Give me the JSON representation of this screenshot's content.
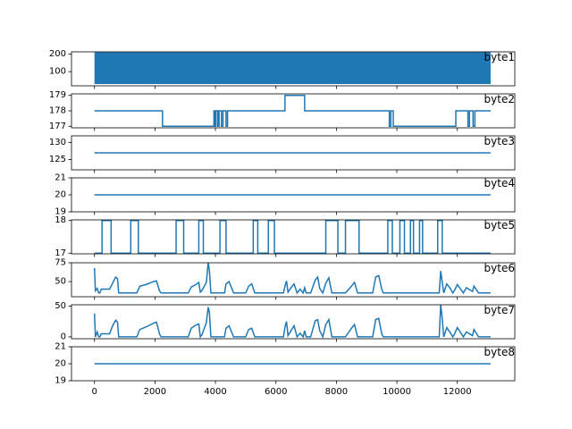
{
  "chart_data": {
    "type": "line",
    "line_color": "#1f77b4",
    "shared_x": {
      "xlim": [
        -760,
        13900
      ],
      "ticks": [
        0,
        2000,
        4000,
        6000,
        8000,
        10000,
        12000
      ],
      "tick_labels": [
        "0",
        "2000",
        "4000",
        "6000",
        "8000",
        "10000",
        "12000"
      ]
    },
    "panels": [
      {
        "title": "byte1",
        "ylim": [
          20,
          212
        ],
        "yticks": [
          100,
          200
        ],
        "ytick_labels": [
          "100",
          "200"
        ],
        "style": "dense-fill",
        "x": [
          0,
          13100
        ],
        "y_low": 30,
        "y_high": 210
      },
      {
        "title": "byte2",
        "ylim": [
          176.9,
          179.1
        ],
        "yticks": [
          177,
          178,
          179
        ],
        "ytick_labels": [
          "177",
          "178",
          "179"
        ],
        "style": "step",
        "x": [
          0,
          2250,
          2250,
          3950,
          3950,
          3980,
          3980,
          4020,
          4020,
          4080,
          4080,
          4120,
          4120,
          4200,
          4200,
          4250,
          4250,
          4350,
          4350,
          4400,
          4400,
          6300,
          6300,
          6950,
          6950,
          7050,
          7050,
          9750,
          9750,
          9800,
          9800,
          9880,
          9880,
          11950,
          11950,
          12050,
          12050,
          12350,
          12350,
          12400,
          12400,
          12520,
          12520,
          12580,
          12580,
          13100
        ],
        "y": [
          178,
          178,
          177,
          177,
          178,
          178,
          177,
          177,
          178,
          178,
          177,
          177,
          178,
          178,
          177,
          177,
          178,
          178,
          177,
          177,
          178,
          178,
          179,
          179,
          178,
          178,
          178,
          178,
          177,
          177,
          178,
          178,
          177,
          177,
          178,
          178,
          178,
          178,
          177,
          177,
          178,
          178,
          177,
          177,
          178,
          178
        ]
      },
      {
        "title": "byte3",
        "ylim": [
          122,
          132
        ],
        "yticks": [
          125,
          130
        ],
        "ytick_labels": [
          "125",
          "130"
        ],
        "style": "line",
        "x": [
          0,
          13100
        ],
        "y": [
          127,
          127
        ]
      },
      {
        "title": "byte4",
        "ylim": [
          19,
          21
        ],
        "yticks": [
          19,
          20,
          21
        ],
        "ytick_labels": [
          "19",
          "20",
          "21"
        ],
        "style": "line",
        "x": [
          0,
          13100
        ],
        "y": [
          20,
          20
        ]
      },
      {
        "title": "byte5",
        "ylim": [
          16.98,
          18.02
        ],
        "yticks": [
          17,
          18
        ],
        "ytick_labels": [
          "17",
          "18"
        ],
        "style": "step",
        "x": [
          0,
          250,
          250,
          550,
          550,
          1200,
          1200,
          1450,
          1450,
          2700,
          2700,
          2950,
          2950,
          3450,
          3450,
          3600,
          3600,
          4150,
          4150,
          4350,
          4350,
          5250,
          5250,
          5400,
          5400,
          5750,
          5750,
          5950,
          5950,
          7650,
          7650,
          8050,
          8050,
          8300,
          8300,
          8750,
          8750,
          9700,
          9700,
          9850,
          9850,
          10100,
          10100,
          10250,
          10250,
          10450,
          10450,
          10550,
          10550,
          10750,
          10750,
          10850,
          10850,
          11350,
          11350,
          11500,
          11500,
          13100
        ],
        "y": [
          17,
          17,
          18,
          18,
          17,
          17,
          18,
          18,
          17,
          17,
          18,
          18,
          17,
          17,
          18,
          18,
          17,
          17,
          18,
          18,
          17,
          17,
          18,
          18,
          17,
          17,
          18,
          18,
          17,
          17,
          18,
          18,
          17,
          17,
          18,
          18,
          17,
          17,
          18,
          18,
          17,
          17,
          18,
          18,
          17,
          17,
          18,
          18,
          17,
          17,
          18,
          18,
          17,
          17,
          18,
          18,
          17,
          17
        ]
      },
      {
        "title": "byte6",
        "ylim": [
          30,
          75
        ],
        "yticks": [
          50,
          75
        ],
        "ytick_labels": [
          "50",
          "75"
        ],
        "style": "line",
        "x": [
          0,
          30,
          90,
          140,
          180,
          220,
          500,
          600,
          700,
          760,
          800,
          1400,
          1500,
          1700,
          1950,
          2050,
          2150,
          2200,
          3100,
          3200,
          3350,
          3450,
          3500,
          3550,
          3700,
          3760,
          3800,
          3850,
          4300,
          4350,
          4450,
          4600,
          4680,
          4700,
          5000,
          5100,
          5200,
          5300,
          6250,
          6300,
          6350,
          6400,
          6500,
          6600,
          6700,
          6800,
          6900,
          6950,
          7000,
          7150,
          7300,
          7380,
          7450,
          7550,
          7650,
          7750,
          7850,
          8300,
          8500,
          8600,
          8700,
          9200,
          9300,
          9400,
          9500,
          9550,
          11400,
          11450,
          11550,
          11650,
          11750,
          11850,
          11900,
          12000,
          12200,
          12300,
          12500,
          12550,
          12700,
          12800,
          13100
        ],
        "y": [
          68,
          38,
          41,
          35,
          35,
          40,
          40,
          48,
          56,
          54,
          35,
          35,
          44,
          46,
          50,
          51,
          38,
          35,
          35,
          43,
          46,
          49,
          36,
          38,
          49,
          75,
          65,
          35,
          35,
          47,
          50,
          35,
          35,
          35,
          35,
          44,
          47,
          35,
          35,
          44,
          51,
          36,
          42,
          47,
          35,
          40,
          35,
          42,
          35,
          35,
          52,
          56,
          41,
          35,
          48,
          55,
          35,
          35,
          44,
          49,
          35,
          35,
          56,
          58,
          40,
          35,
          35,
          64,
          35,
          47,
          42,
          35,
          38,
          46,
          35,
          42,
          37,
          44,
          35,
          35,
          35
        ]
      },
      {
        "title": "byte7",
        "ylim": [
          -3,
          52
        ],
        "yticks": [
          0,
          50
        ],
        "ytick_labels": [
          "0",
          "50"
        ],
        "style": "line",
        "x": [
          0,
          30,
          90,
          140,
          180,
          220,
          500,
          600,
          700,
          760,
          800,
          1400,
          1500,
          1700,
          1950,
          2050,
          2150,
          2200,
          3100,
          3200,
          3350,
          3450,
          3500,
          3550,
          3700,
          3760,
          3800,
          3850,
          4300,
          4350,
          4450,
          4600,
          4680,
          4700,
          5000,
          5100,
          5200,
          5300,
          6250,
          6300,
          6350,
          6400,
          6500,
          6600,
          6700,
          6800,
          6900,
          6950,
          7000,
          7150,
          7300,
          7380,
          7450,
          7550,
          7650,
          7750,
          7850,
          8300,
          8500,
          8600,
          8700,
          9200,
          9300,
          9400,
          9500,
          9550,
          11400,
          11450,
          11500,
          11550,
          11650,
          11750,
          11850,
          11900,
          12000,
          12200,
          12300,
          12500,
          12550,
          12700,
          12800,
          13100
        ],
        "y": [
          38,
          0,
          8,
          0,
          0,
          5,
          5,
          18,
          27,
          24,
          0,
          0,
          12,
          16,
          22,
          24,
          5,
          0,
          0,
          14,
          19,
          21,
          0,
          3,
          23,
          48,
          40,
          0,
          0,
          14,
          18,
          0,
          0,
          0,
          0,
          12,
          14,
          0,
          0,
          16,
          25,
          2,
          10,
          18,
          0,
          6,
          0,
          10,
          0,
          0,
          26,
          28,
          10,
          0,
          20,
          28,
          0,
          0,
          14,
          20,
          0,
          0,
          28,
          30,
          5,
          0,
          0,
          52,
          30,
          0,
          15,
          8,
          0,
          4,
          15,
          0,
          8,
          2,
          12,
          0,
          0,
          0
        ]
      },
      {
        "title": "byte8",
        "ylim": [
          19,
          21
        ],
        "yticks": [
          19,
          20,
          21
        ],
        "ytick_labels": [
          "19",
          "20",
          "21"
        ],
        "style": "line",
        "x": [
          0,
          13100
        ],
        "y": [
          20,
          20
        ]
      }
    ]
  }
}
